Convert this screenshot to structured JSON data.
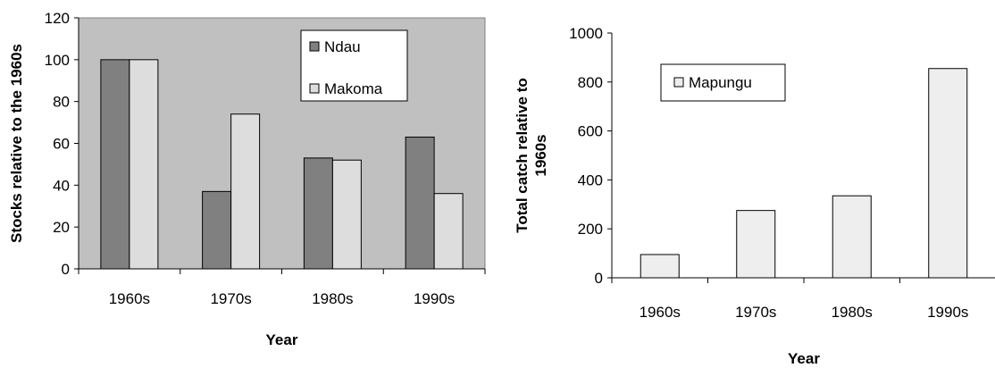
{
  "chart_data": [
    {
      "type": "bar",
      "categories": [
        "1960s",
        "1970s",
        "1980s",
        "1990s"
      ],
      "series": [
        {
          "name": "Ndau",
          "values": [
            100,
            37,
            53,
            63
          ],
          "color": "#808080"
        },
        {
          "name": "Makoma",
          "values": [
            100,
            74,
            52,
            36
          ],
          "color": "#dddddd"
        }
      ],
      "title": "",
      "xlabel": "Year",
      "ylabel": "Stocks relative to the 1960s",
      "ylim": [
        0,
        120
      ],
      "yticks": [
        "0",
        "20",
        "40",
        "60",
        "80",
        "100",
        "120"
      ],
      "grid": false,
      "plot_background": "#c0c0c0",
      "legend_position": "top-right"
    },
    {
      "type": "bar",
      "categories": [
        "1960s",
        "1970s",
        "1980s",
        "1990s"
      ],
      "series": [
        {
          "name": "Mapungu",
          "values": [
            95,
            275,
            335,
            855
          ],
          "color": "#eeeeee"
        }
      ],
      "title": "",
      "xlabel": "Year",
      "ylabel": [
        "Total catch relative to",
        "1960s"
      ],
      "ylim": [
        0,
        1000
      ],
      "yticks": [
        "0",
        "200",
        "400",
        "600",
        "800",
        "1000"
      ],
      "grid": false,
      "plot_background": "#ffffff",
      "legend_position": "top-left"
    }
  ]
}
